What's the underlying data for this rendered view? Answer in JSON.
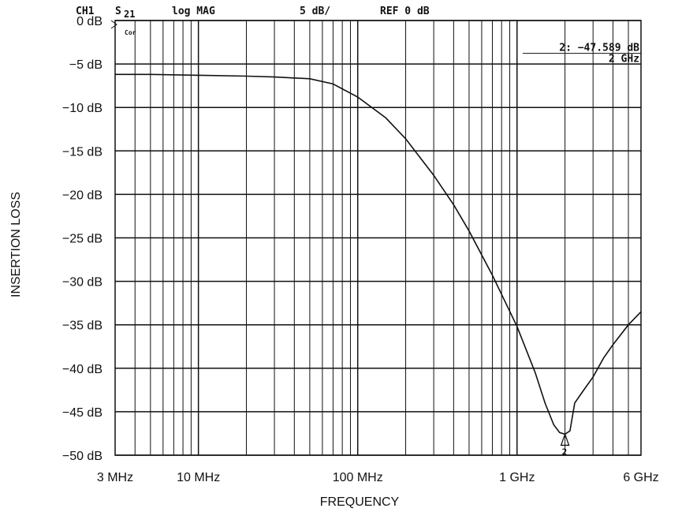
{
  "chart_data": {
    "type": "line",
    "header": {
      "channel": "CH1",
      "param_main": "S",
      "param_sub": "21",
      "format": "log MAG",
      "scale": "5 dB/",
      "ref": "REF 0 dB",
      "status_flag": "Cor"
    },
    "ylabel": "INSERTION LOSS",
    "xlabel": "FREQUENCY",
    "x_scale": "log",
    "x_unit": "Hz",
    "y_unit": "dB",
    "xlim": [
      3000000,
      6000000000
    ],
    "ylim": [
      -50,
      0
    ],
    "x_ticks": [
      {
        "value": 3000000,
        "label": "3 MHz"
      },
      {
        "value": 10000000,
        "label": "10 MHz"
      },
      {
        "value": 100000000,
        "label": "100 MHz"
      },
      {
        "value": 1000000000,
        "label": "1 GHz"
      },
      {
        "value": 6000000000,
        "label": "6 GHz"
      }
    ],
    "y_ticks": [
      {
        "value": 0,
        "label": "0 dB"
      },
      {
        "value": -5,
        "label": "−5 dB"
      },
      {
        "value": -10,
        "label": "−10 dB"
      },
      {
        "value": -15,
        "label": "−15 dB"
      },
      {
        "value": -20,
        "label": "−20 dB"
      },
      {
        "value": -25,
        "label": "−25 dB"
      },
      {
        "value": -30,
        "label": "−30 dB"
      },
      {
        "value": -35,
        "label": "−35 dB"
      },
      {
        "value": -40,
        "label": "−40 dB"
      },
      {
        "value": -45,
        "label": "−45 dB"
      },
      {
        "value": -50,
        "label": "−50 dB"
      }
    ],
    "grid": true,
    "marker": {
      "number": "2",
      "x": 2000000000,
      "y": -47.589,
      "readout_value": "2: −47.589 dB",
      "readout_freq": "2 GHz"
    },
    "series": [
      {
        "x": [
          3000000,
          5000000,
          10000000,
          20000000,
          30000000,
          50000000,
          70000000,
          100000000,
          150000000,
          200000000,
          300000000,
          400000000,
          500000000,
          700000000,
          1000000000,
          1300000000,
          1500000000,
          1700000000,
          1850000000,
          2000000000,
          2150000000,
          2300000000,
          2600000000,
          3000000000,
          3500000000,
          4000000000,
          5000000000,
          6000000000
        ],
        "y": [
          -6.2,
          -6.2,
          -6.3,
          -6.4,
          -6.5,
          -6.7,
          -7.3,
          -8.8,
          -11.2,
          -13.6,
          -17.8,
          -21.2,
          -24.2,
          -29.3,
          -35.2,
          -40.5,
          -44.0,
          -46.5,
          -47.4,
          -47.589,
          -47.2,
          -44.0,
          -42.6,
          -41.0,
          -38.8,
          -37.3,
          -35.0,
          -33.5
        ]
      }
    ]
  }
}
